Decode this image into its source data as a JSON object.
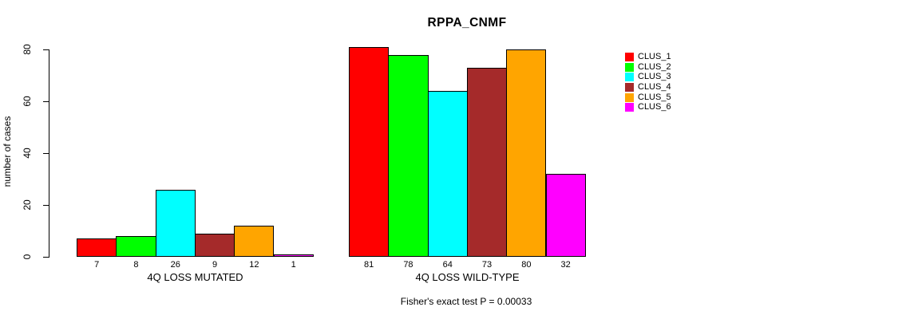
{
  "chart_data": {
    "type": "bar",
    "title": "RPPA_CNMF",
    "ylabel": "number of cases",
    "ylim": [
      0,
      80
    ],
    "yticks": [
      0,
      20,
      40,
      60,
      80
    ],
    "categories": [
      "4Q LOSS MUTATED",
      "4Q LOSS WILD-TYPE"
    ],
    "series": [
      {
        "name": "CLUS_1",
        "color": "#FF0000",
        "values": [
          7,
          81
        ]
      },
      {
        "name": "CLUS_2",
        "color": "#00FF00",
        "values": [
          8,
          78
        ]
      },
      {
        "name": "CLUS_3",
        "color": "#00FFFF",
        "values": [
          26,
          64
        ]
      },
      {
        "name": "CLUS_4",
        "color": "#A52A2A",
        "values": [
          9,
          73
        ]
      },
      {
        "name": "CLUS_5",
        "color": "#FFA500",
        "values": [
          12,
          80
        ]
      },
      {
        "name": "CLUS_6",
        "color": "#FF00FF",
        "values": [
          1,
          32
        ]
      }
    ],
    "bar_value_labels": true,
    "legend_position": "right",
    "annotation": "Fisher's exact test P = 0.00033",
    "grid": false,
    "bar_border_color": "#000000",
    "background": "#FFFFFF"
  }
}
